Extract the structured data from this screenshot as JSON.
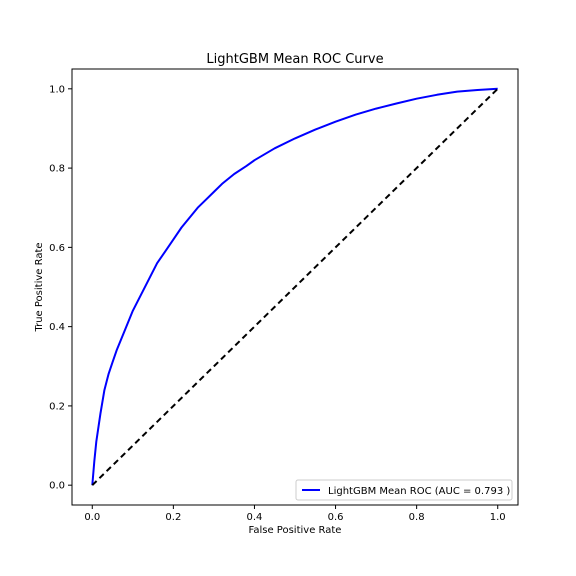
{
  "chart_data": {
    "type": "line",
    "title": "LightGBM Mean ROC Curve",
    "xlabel": "False Positive Rate",
    "ylabel": "True Positive Rate",
    "xlim": [
      -0.05,
      1.05
    ],
    "ylim": [
      -0.05,
      1.05
    ],
    "x_ticks": [
      0.0,
      0.2,
      0.4,
      0.6,
      0.8,
      1.0
    ],
    "y_ticks": [
      0.0,
      0.2,
      0.4,
      0.6,
      0.8,
      1.0
    ],
    "x_tick_labels": [
      "0.0",
      "0.2",
      "0.4",
      "0.6",
      "0.8",
      "1.0"
    ],
    "y_tick_labels": [
      "0.0",
      "0.2",
      "0.4",
      "0.6",
      "0.8",
      "1.0"
    ],
    "grid": false,
    "legend_position": "lower-right",
    "series": [
      {
        "name": "LightGBM Mean ROC (AUC = 0.793 )",
        "color": "#0000ff",
        "style": "solid",
        "x": [
          0.0,
          0.005,
          0.01,
          0.02,
          0.03,
          0.04,
          0.05,
          0.06,
          0.08,
          0.1,
          0.12,
          0.14,
          0.16,
          0.18,
          0.2,
          0.22,
          0.24,
          0.26,
          0.28,
          0.3,
          0.32,
          0.35,
          0.38,
          0.4,
          0.45,
          0.5,
          0.55,
          0.6,
          0.65,
          0.7,
          0.75,
          0.8,
          0.85,
          0.9,
          0.95,
          1.0
        ],
        "y": [
          0.0,
          0.06,
          0.11,
          0.18,
          0.24,
          0.28,
          0.31,
          0.34,
          0.39,
          0.44,
          0.48,
          0.52,
          0.56,
          0.59,
          0.62,
          0.65,
          0.675,
          0.7,
          0.72,
          0.74,
          0.76,
          0.785,
          0.805,
          0.82,
          0.85,
          0.875,
          0.897,
          0.917,
          0.935,
          0.95,
          0.963,
          0.975,
          0.985,
          0.993,
          0.997,
          1.0
        ]
      },
      {
        "name": "",
        "color": "#000000",
        "style": "dashed",
        "x": [
          0.0,
          1.0
        ],
        "y": [
          0.0,
          1.0
        ]
      }
    ]
  }
}
